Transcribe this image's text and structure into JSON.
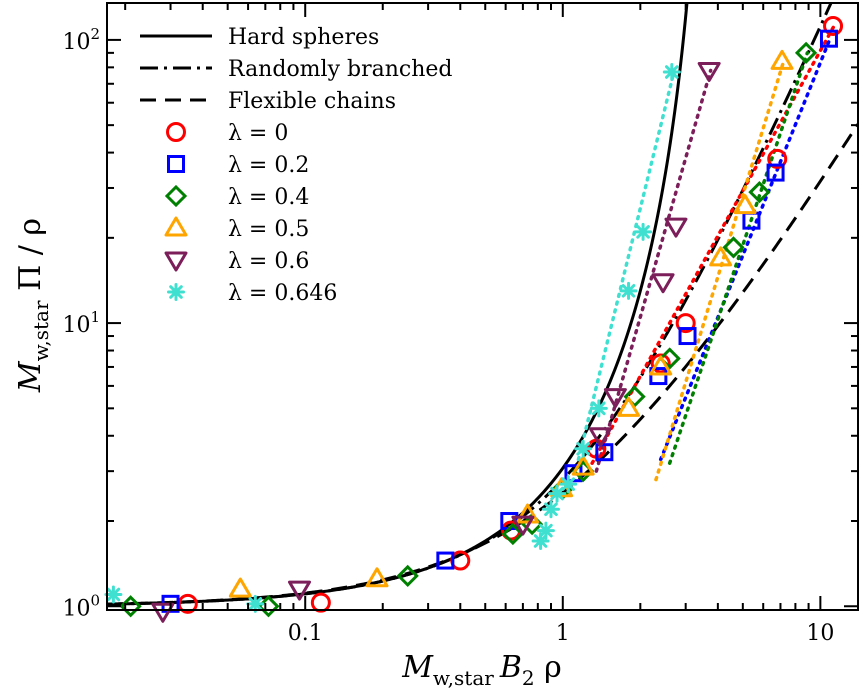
{
  "chart_data": {
    "type": "scatter",
    "title": "",
    "xscale": "log",
    "yscale": "log",
    "xlim": [
      0.017,
      14
    ],
    "ylim": [
      0.97,
      135
    ],
    "xlabel": {
      "main1": "M",
      "sub1": "w,star",
      "main2": "B",
      "sub2": "2",
      "main3": " ρ"
    },
    "ylabel": {
      "main1": "M",
      "sub1": "w,star",
      "main2": " Π / ρ"
    },
    "x_ticks": [
      {
        "value": 0.1,
        "label": "0.1"
      },
      {
        "value": 1,
        "label": "1"
      },
      {
        "value": 10,
        "label": "10"
      }
    ],
    "y_ticks": [
      {
        "value": 1,
        "base": "10",
        "exp": "0"
      },
      {
        "value": 10,
        "base": "10",
        "exp": "1"
      },
      {
        "value": 100,
        "base": "10",
        "exp": "2"
      }
    ],
    "legend_position": "top-left",
    "lines": [
      {
        "name": "Hard spheres",
        "style": "solid",
        "model": "hard_spheres"
      },
      {
        "name": "Randomly branched",
        "style": "dashdot",
        "model": "branched"
      },
      {
        "name": "Flexible chains",
        "style": "dashed",
        "model": "flexible"
      }
    ],
    "series": [
      {
        "name": "λ = 0",
        "marker": "circle",
        "color": "#ff0000",
        "points": [
          [
            0.035,
            1.02
          ],
          [
            0.115,
            1.03
          ],
          [
            0.4,
            1.45
          ],
          [
            0.63,
            1.85
          ],
          [
            1.35,
            3.6
          ],
          [
            2.4,
            7.2
          ],
          [
            3.0,
            10.0
          ],
          [
            6.8,
            38.0
          ],
          [
            11.2,
            112.0
          ]
        ],
        "fit": [
          [
            1.3,
            3.2
          ],
          [
            11.3,
            112.0
          ]
        ]
      },
      {
        "name": "λ = 0.2",
        "marker": "square",
        "color": "#0000ff",
        "points": [
          [
            0.03,
            1.02
          ],
          [
            0.35,
            1.45
          ],
          [
            0.62,
            2.0
          ],
          [
            1.1,
            2.95
          ],
          [
            1.45,
            3.5
          ],
          [
            2.35,
            6.5
          ],
          [
            3.05,
            9.0
          ],
          [
            5.4,
            23.0
          ],
          [
            6.7,
            34.0
          ],
          [
            10.8,
            101.0
          ]
        ],
        "fit": [
          [
            2.4,
            3.3
          ],
          [
            10.9,
            101.0
          ]
        ]
      },
      {
        "name": "λ = 0.4",
        "marker": "diamond",
        "color": "#008000",
        "points": [
          [
            0.021,
            1.0
          ],
          [
            0.072,
            1.0
          ],
          [
            0.25,
            1.28
          ],
          [
            0.64,
            1.8
          ],
          [
            0.76,
            1.95
          ],
          [
            1.0,
            2.6
          ],
          [
            1.2,
            3.0
          ],
          [
            1.9,
            5.5
          ],
          [
            2.6,
            7.5
          ],
          [
            4.6,
            18.5
          ],
          [
            5.8,
            29.0
          ],
          [
            8.8,
            90.0
          ]
        ],
        "fit": [
          [
            2.6,
            3.2
          ],
          [
            8.9,
            90.0
          ]
        ]
      },
      {
        "name": "λ = 0.5",
        "marker": "triangle-up",
        "color": "#ffa500",
        "points": [
          [
            0.056,
            1.15
          ],
          [
            0.19,
            1.25
          ],
          [
            0.73,
            2.1
          ],
          [
            0.99,
            2.6
          ],
          [
            1.2,
            3.1
          ],
          [
            1.8,
            5.0
          ],
          [
            2.4,
            7.0
          ],
          [
            4.1,
            17.0
          ],
          [
            5.1,
            26.0
          ],
          [
            7.1,
            84.0
          ]
        ],
        "fit": [
          [
            2.3,
            2.8
          ],
          [
            7.2,
            84.0
          ]
        ]
      },
      {
        "name": "λ = 0.6",
        "marker": "triangle-down",
        "color": "#7b1e5a",
        "points": [
          [
            0.028,
            0.96
          ],
          [
            0.095,
            1.15
          ],
          [
            0.7,
            1.95
          ],
          [
            1.4,
            4.0
          ],
          [
            1.6,
            5.5
          ],
          [
            2.45,
            14.0
          ],
          [
            2.75,
            22.0
          ],
          [
            3.7,
            78.0
          ]
        ],
        "fit": [
          [
            1.35,
            3.0
          ],
          [
            3.75,
            78.0
          ]
        ]
      },
      {
        "name": "λ = 0.646",
        "marker": "asterisk",
        "color": "#40e0d0",
        "points": [
          [
            0.018,
            1.1
          ],
          [
            0.064,
            1.02
          ],
          [
            0.82,
            1.7
          ],
          [
            0.86,
            1.85
          ],
          [
            0.9,
            2.2
          ],
          [
            0.95,
            2.5
          ],
          [
            1.05,
            2.7
          ],
          [
            1.2,
            3.6
          ],
          [
            1.38,
            5.0
          ],
          [
            1.8,
            13.0
          ],
          [
            2.05,
            21.0
          ],
          [
            2.65,
            77.0
          ]
        ],
        "fit": [
          [
            1.15,
            3.3
          ],
          [
            2.7,
            77.0
          ]
        ]
      }
    ]
  }
}
